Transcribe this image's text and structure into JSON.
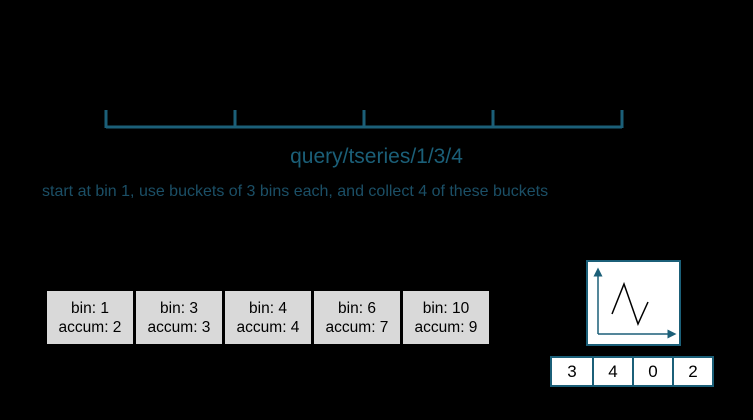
{
  "query_label": "query/tseries/1/3/4",
  "description": "start at bin 1, use buckets of 3 bins each,  and collect 4 of these buckets",
  "bins": [
    {
      "bin": "bin: 1",
      "accum": "accum: 2"
    },
    {
      "bin": "bin: 3",
      "accum": "accum: 3"
    },
    {
      "bin": "bin: 4",
      "accum": "accum: 4"
    },
    {
      "bin": "bin: 6",
      "accum": "accum: 7"
    },
    {
      "bin": "bin: 10",
      "accum": "accum: 9"
    }
  ],
  "result_values": [
    "3",
    "4",
    "0",
    "2"
  ],
  "colors": {
    "accent": "#1b5f78",
    "background": "#000000",
    "bin_fill": "#d9d9d9"
  }
}
